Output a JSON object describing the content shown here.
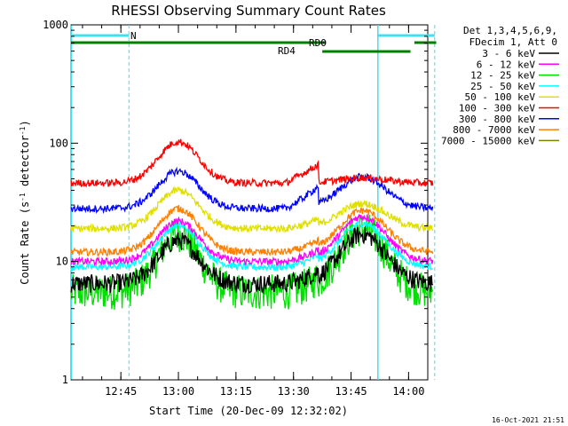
{
  "chart_data": {
    "type": "line",
    "title": "RHESSI Observing Summary Count Rates",
    "xlabel": "Start Time (20-Dec-09 12:32:02)",
    "ylabel": "Count Rate (s",
    "ylabel_sup": "-1",
    "ylabel_tail": " detector",
    "ylabel_end": ")",
    "y_scale": "log",
    "ylim": [
      1,
      1000
    ],
    "y_ticks": [
      {
        "value": 1,
        "label": "1"
      },
      {
        "value": 10,
        "label": "10"
      },
      {
        "value": 100,
        "label": "100"
      },
      {
        "value": 1000,
        "label": "1000"
      }
    ],
    "xlim_minutes": [
      0,
      93
    ],
    "x_ticks": [
      {
        "value": 13,
        "label": "12:45"
      },
      {
        "value": 28,
        "label": "13:00"
      },
      {
        "value": 43,
        "label": "13:15"
      },
      {
        "value": 58,
        "label": "13:30"
      },
      {
        "value": 73,
        "label": "13:45"
      },
      {
        "value": 88,
        "label": "14:00"
      }
    ],
    "legend_header": [
      "Det 1,3,4,5,6,9,",
      "FDecim 1, Att 0"
    ],
    "legend_placement": "right",
    "series": [
      {
        "name": "3 - 6 keV",
        "color": "#000000",
        "base": 6.5,
        "peak1": 15,
        "peak2": 17
      },
      {
        "name": "6 - 12 keV",
        "color": "#ff00ff",
        "base": 10,
        "peak1": 22,
        "peak2": 24
      },
      {
        "name": "12 - 25 keV",
        "color": "#00e000",
        "base": 5.5,
        "peak1": 17,
        "peak2": 19
      },
      {
        "name": "25 - 50 keV",
        "color": "#00ffff",
        "base": 9,
        "peak1": 20,
        "peak2": 21
      },
      {
        "name": "50 - 100 keV",
        "color": "#e0e000",
        "base": 19,
        "peak1": 40,
        "peak2": 31
      },
      {
        "name": "100 - 300 keV",
        "color": "#ff0000",
        "base": 46,
        "peak1": 103,
        "peak2": 51
      },
      {
        "name": "300 - 800 keV",
        "color": "#0000ff",
        "base": 28,
        "peak1": 58,
        "peak2": 52
      },
      {
        "name": "800 - 7000 keV",
        "color": "#ff8000",
        "base": 12,
        "peak1": 28,
        "peak2": 27
      },
      {
        "name": "7000 - 15000 keV",
        "color": "#808000",
        "base": 0,
        "peak1": 0,
        "peak2": 0
      }
    ],
    "annotations": {
      "n_label": "N",
      "rd0_label": "RD0",
      "rd4_label": "RD4"
    },
    "footer_timestamp": "16-Oct-2021 21:51"
  }
}
